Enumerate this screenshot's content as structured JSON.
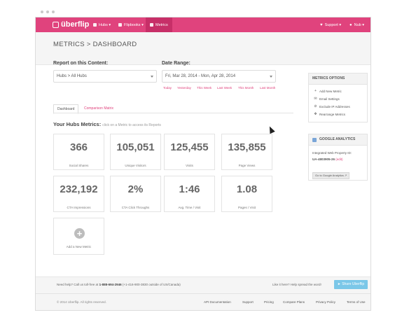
{
  "nav": {
    "logo": "überflip",
    "items": [
      {
        "label": "Hubs ▾"
      },
      {
        "label": "Flipbooks ▾"
      },
      {
        "label": "Metrics"
      }
    ],
    "support": "Support ▾",
    "user": "Nub ▾",
    "accent": "#e0437d"
  },
  "breadcrumb": "METRICS > DASHBOARD",
  "report": {
    "label": "Report on this Content:",
    "value": "Hubs > All Hubs"
  },
  "date_range": {
    "label": "Date Range:",
    "value": "Fri, Mar 28, 2014 - Mon, Apr 28, 2014",
    "quick": [
      "Today",
      "Yesterday",
      "This Week",
      "Last Week",
      "This Month",
      "Last Month"
    ]
  },
  "tabs": [
    "Dashboard",
    "Comparison Matrix"
  ],
  "heading": {
    "title": "Your Hubs Metrics:",
    "subtitle": "click on a Metric to access its Reports"
  },
  "metrics": [
    {
      "value": "366",
      "label": "Social Shares"
    },
    {
      "value": "105,051",
      "label": "Unique Visitors"
    },
    {
      "value": "125,455",
      "label": "Visits"
    },
    {
      "value": "135,855",
      "label": "Page Views"
    },
    {
      "value": "232,192",
      "label": "CTA Impressions"
    },
    {
      "value": "2%",
      "label": "CTA Click Throughs"
    },
    {
      "value": "1:46",
      "label": "Avg. Time / Visit"
    },
    {
      "value": "1.08",
      "label": "Pages / Visit"
    }
  ],
  "add_metric": "Add a New Metric",
  "metrics_options": {
    "title": "METRICS OPTIONS",
    "items": [
      {
        "label": "Add New Metric",
        "icon": "plus-icon"
      },
      {
        "label": "Email Settings",
        "icon": "envelope-icon"
      },
      {
        "label": "Exclude IP Addresses",
        "icon": "block-icon"
      },
      {
        "label": "Rearrange Metrics",
        "icon": "move-icon"
      }
    ]
  },
  "google_analytics": {
    "title": "GOOGLE ANALYTICS",
    "property_label": "Integrated Web Property ID:",
    "property_id": "UA-4803905-26",
    "edit": "(edit)",
    "button": "Go to Google Analytics"
  },
  "footer": {
    "help_prefix": "Need help? Call us toll-free at",
    "phone": "1-888-694-2946",
    "help_suffix": "(+1-416-900-3830 outside of US/Canada)",
    "spread": "Like it here? Help spread the word!",
    "share_button": "Share Uberflip",
    "copyright": "© 2014 Uberflip. All rights reserved.",
    "links": [
      "API Documentation",
      "Support",
      "Pricing",
      "Compare Plans",
      "Privacy Policy",
      "Terms of Use"
    ]
  }
}
